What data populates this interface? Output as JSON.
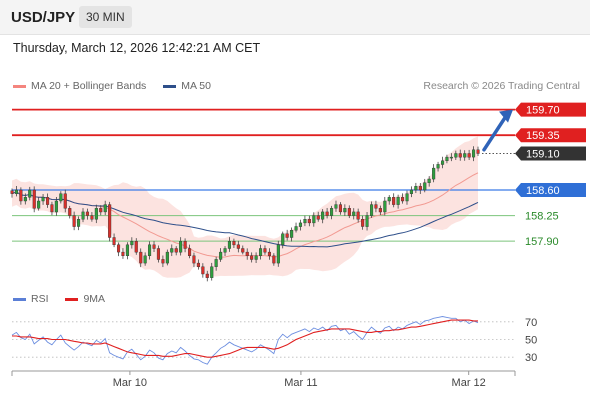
{
  "header": {
    "symbol": "USD/JPY",
    "timeframe": "30 MIN"
  },
  "datetime": "Thursday, March 12, 2026 12:42:21 AM CET",
  "main_legend": [
    {
      "label": "MA 20 + Bollinger Bands",
      "color": "#f4857e"
    },
    {
      "label": "MA 50",
      "color": "#2e4f8a"
    }
  ],
  "copyright": "Research © 2026 Trading Central",
  "rsi_legend": [
    {
      "label": "RSI",
      "color": "#5b7fd6"
    },
    {
      "label": "9MA",
      "color": "#e02020"
    }
  ],
  "chart_data": [
    {
      "type": "candlestick",
      "y_range": [
        157.3,
        159.9
      ],
      "x_labels": [
        "Mar 10",
        "Mar 11",
        "Mar 12"
      ],
      "levels": [
        {
          "value": 159.7,
          "label": "159.70",
          "kind": "resistance",
          "color": "#e02020"
        },
        {
          "value": 159.35,
          "label": "159.35",
          "kind": "resistance",
          "color": "#e02020"
        },
        {
          "value": 159.1,
          "label": "159.10",
          "kind": "last-price",
          "color": "#333333"
        },
        {
          "value": 158.6,
          "label": "158.60",
          "kind": "pivot",
          "color": "#3b7be8"
        },
        {
          "value": 158.25,
          "label": "158.25",
          "kind": "support",
          "color": "#2a8a2a"
        },
        {
          "value": 157.9,
          "label": "157.90",
          "kind": "support",
          "color": "#2a8a2a"
        }
      ],
      "forecast_arrow": {
        "from": 159.15,
        "to": 159.7
      },
      "closes": [
        158.55,
        158.6,
        158.45,
        158.5,
        158.6,
        158.35,
        158.45,
        158.5,
        158.4,
        158.3,
        158.45,
        158.55,
        158.35,
        158.25,
        158.1,
        158.2,
        158.3,
        158.25,
        158.2,
        158.35,
        158.3,
        158.4,
        157.95,
        157.85,
        157.75,
        157.7,
        157.85,
        157.9,
        157.75,
        157.6,
        157.7,
        157.85,
        157.8,
        157.65,
        157.6,
        157.75,
        157.8,
        157.75,
        157.9,
        157.8,
        157.7,
        157.6,
        157.55,
        157.45,
        157.4,
        157.55,
        157.65,
        157.75,
        157.8,
        157.9,
        157.85,
        157.8,
        157.75,
        157.7,
        157.65,
        157.7,
        157.8,
        157.75,
        157.7,
        157.6,
        157.85,
        158.0,
        157.95,
        158.05,
        158.1,
        158.15,
        158.2,
        158.15,
        158.25,
        158.2,
        158.3,
        158.25,
        158.35,
        158.4,
        158.3,
        158.35,
        158.25,
        158.3,
        158.2,
        158.1,
        158.25,
        158.4,
        158.35,
        158.3,
        158.45,
        158.5,
        158.4,
        158.5,
        158.45,
        158.55,
        158.6,
        158.65,
        158.6,
        158.7,
        158.75,
        158.9,
        158.95,
        159.0,
        159.05,
        159.05,
        159.1,
        159.05,
        159.1,
        159.05,
        159.15,
        159.1
      ]
    },
    {
      "type": "line",
      "name": "RSI panel",
      "y_range": [
        20,
        80
      ],
      "y_ticks": [
        70,
        50,
        30
      ],
      "series": [
        {
          "name": "RSI",
          "values": [
            55,
            58,
            52,
            50,
            56,
            45,
            49,
            53,
            47,
            44,
            50,
            55,
            46,
            42,
            38,
            42,
            47,
            45,
            43,
            49,
            46,
            51,
            35,
            32,
            30,
            28,
            36,
            39,
            33,
            27,
            31,
            38,
            35,
            29,
            27,
            34,
            37,
            35,
            41,
            37,
            32,
            28,
            27,
            24,
            22,
            30,
            35,
            40,
            43,
            47,
            44,
            42,
            40,
            38,
            36,
            39,
            44,
            41,
            38,
            34,
            50,
            56,
            52,
            56,
            58,
            60,
            62,
            59,
            63,
            61,
            64,
            60,
            65,
            66,
            60,
            62,
            56,
            59,
            54,
            50,
            58,
            64,
            60,
            57,
            63,
            65,
            60,
            64,
            62,
            66,
            68,
            70,
            67,
            71,
            72,
            74,
            75,
            76,
            75,
            74,
            74,
            70,
            72,
            68,
            71,
            69
          ]
        },
        {
          "name": "9MA",
          "values": [
            54,
            54,
            53,
            53,
            53,
            52,
            51,
            51,
            51,
            50,
            50,
            50,
            50,
            49,
            48,
            47,
            46,
            46,
            45,
            45,
            45,
            46,
            44,
            42,
            40,
            38,
            36,
            35,
            34,
            33,
            32,
            32,
            32,
            32,
            31,
            31,
            31,
            32,
            33,
            34,
            34,
            33,
            32,
            31,
            30,
            30,
            31,
            32,
            33,
            34,
            36,
            38,
            40,
            41,
            41,
            41,
            41,
            41,
            40,
            39,
            40,
            42,
            44,
            47,
            50,
            52,
            54,
            56,
            58,
            59,
            60,
            61,
            62,
            62,
            62,
            62,
            62,
            61,
            60,
            59,
            58,
            58,
            59,
            59,
            60,
            60,
            61,
            61,
            62,
            63,
            64,
            64,
            65,
            66,
            67,
            68,
            69,
            70,
            71,
            72,
            72,
            72,
            72,
            72,
            71,
            71
          ]
        }
      ]
    }
  ]
}
